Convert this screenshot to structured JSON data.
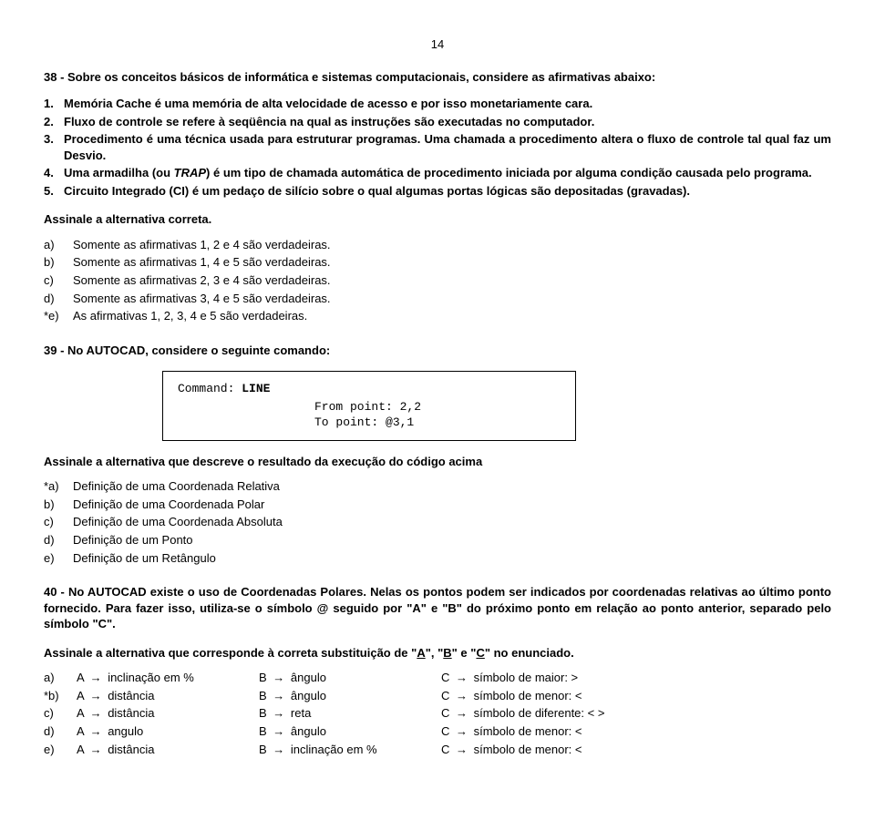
{
  "pageNumber": "14",
  "q38": {
    "stem": "38 - Sobre os conceitos básicos de informática e sistemas computacionais, considere as afirmativas abaixo:",
    "items": [
      {
        "n": "1.",
        "text": "Memória Cache é uma memória de alta velocidade de acesso e por isso monetariamente cara."
      },
      {
        "n": "2.",
        "text": "Fluxo de controle se refere à seqüência na qual as instruções são executadas no computador."
      },
      {
        "n": "3.",
        "text": "Procedimento é uma técnica usada para estruturar programas. Uma chamada a procedimento altera o fluxo de controle tal qual faz um Desvio."
      },
      {
        "n": "4.",
        "pre": "Uma armadilha (ou ",
        "italic": "TRAP",
        "post": ") é um tipo de chamada automática de procedimento iniciada por alguma condição causada pelo programa."
      },
      {
        "n": "5.",
        "text": "Circuito Integrado (CI) é um pedaço de silício sobre o qual algumas portas lógicas são depositadas (gravadas)."
      }
    ],
    "instruction": "Assinale a alternativa correta.",
    "options": [
      {
        "k": "a)",
        "t": "Somente as afirmativas 1, 2 e 4 são verdadeiras."
      },
      {
        "k": "b)",
        "t": "Somente as afirmativas 1, 4 e 5 são verdadeiras."
      },
      {
        "k": "c)",
        "t": "Somente as afirmativas 2, 3 e 4 são verdadeiras."
      },
      {
        "k": "d)",
        "t": "Somente as afirmativas 3, 4 e 5 são verdadeiras."
      },
      {
        "k": "*e)",
        "t": "As afirmativas 1, 2, 3, 4 e 5 são verdadeiras."
      }
    ]
  },
  "q39": {
    "stem": "39 - No AUTOCAD, considere o seguinte comando:",
    "code": {
      "label": "Command: ",
      "cmd": "LINE",
      "from": "From point: 2,2",
      "to": "To point: @3,1"
    },
    "instruction": "Assinale a alternativa que descreve o resultado da execução do código acima",
    "options": [
      {
        "k": "*a)",
        "t": "Definição de uma Coordenada Relativa"
      },
      {
        "k": "b)",
        "t": "Definição de uma Coordenada Polar"
      },
      {
        "k": "c)",
        "t": "Definição de uma Coordenada Absoluta"
      },
      {
        "k": "d)",
        "t": "Definição de um Ponto"
      },
      {
        "k": "e)",
        "t": "Definição de um Retângulo"
      }
    ]
  },
  "q40": {
    "para": "40 - No AUTOCAD existe o uso de Coordenadas Polares. Nelas os pontos podem ser indicados por coordenadas relativas ao último ponto fornecido. Para fazer isso, utiliza-se o símbolo @ seguido por \"A\" e \"B\" do próximo ponto em relação ao ponto anterior, separado pelo símbolo \"C\".",
    "instruction_pre": "Assinale a alternativa que corresponde à correta substituição de \"",
    "A": "A",
    "mid1": "\", \"",
    "B": "B",
    "mid2": "\" e \"",
    "C": "C",
    "instruction_post": "\" no enunciado.",
    "arrow": "→",
    "rows": [
      {
        "k": "a)",
        "a": "inclinação em %",
        "b": "ângulo",
        "c": "símbolo de maior: >"
      },
      {
        "k": "*b)",
        "a": "distância",
        "b": "ângulo",
        "c": "símbolo de menor: <"
      },
      {
        "k": "c)",
        "a": "distância",
        "b": "reta",
        "c": "símbolo de diferente: < >"
      },
      {
        "k": "d)",
        "a": "angulo",
        "b": "ângulo",
        "c": "símbolo de menor: <"
      },
      {
        "k": "e)",
        "a": "distância",
        "b": "inclinação em %",
        "c": "símbolo de menor: <"
      }
    ]
  }
}
